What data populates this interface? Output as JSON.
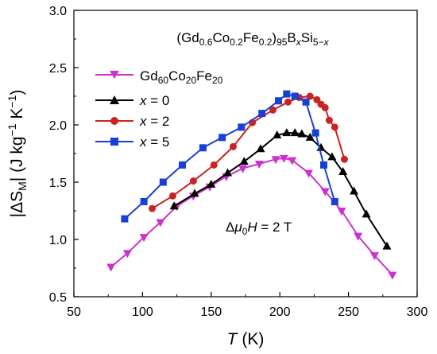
{
  "chart_data": {
    "type": "line",
    "title": "(Gd0.6Co0.2Fe0.2)95BxSi5−x",
    "title_parts": {
      "a": "(Gd",
      "b": "0.6",
      "c": "Co",
      "d": "0.2",
      "e": "Fe",
      "f": "0.2",
      "g": ")",
      "h": "95",
      "i": "B",
      "j": "x",
      "k": "Si",
      "l": "5−",
      "m": "x"
    },
    "xlabel": "T (K)",
    "xlabel_parts": {
      "var": "T",
      "unit": " (K)"
    },
    "ylabel": "|ΔSM| (J kg−1 K−1)",
    "ylabel_parts": {
      "a": "|ΔS",
      "b": "M",
      "c": "| (J kg",
      "d": "−1",
      "e": " K",
      "f": "−1",
      "g": ")"
    },
    "annotation": "Δμ0H = 2 T",
    "annotation_parts": {
      "a": "Δ",
      "b": "μ",
      "c": "0",
      "d": "H",
      "e": " = 2 T"
    },
    "xlim": [
      50,
      300
    ],
    "ylim": [
      0.5,
      3.0
    ],
    "xticks": [
      "50",
      "100",
      "150",
      "200",
      "250",
      "300"
    ],
    "yticks": [
      "0.5",
      "1.0",
      "1.5",
      "2.0",
      "2.5",
      "3.0"
    ],
    "grid": false,
    "legend_position": "top-left",
    "series": [
      {
        "name": "Gd60Co20Fe20",
        "legend_parts": {
          "a": "Gd",
          "b": "60",
          "c": "Co",
          "d": "20",
          "e": "Fe",
          "f": "20"
        },
        "color": "#cc33cc",
        "marker": "triangle-down",
        "points": [
          [
            77,
            0.76
          ],
          [
            89,
            0.88
          ],
          [
            101,
            1.02
          ],
          [
            113,
            1.15
          ],
          [
            125,
            1.29
          ],
          [
            137,
            1.38
          ],
          [
            149,
            1.46
          ],
          [
            161,
            1.55
          ],
          [
            173,
            1.62
          ],
          [
            185,
            1.66
          ],
          [
            197,
            1.7
          ],
          [
            203,
            1.71
          ],
          [
            209,
            1.69
          ],
          [
            221,
            1.58
          ],
          [
            233,
            1.42
          ],
          [
            245,
            1.25
          ],
          [
            257,
            1.03
          ],
          [
            269,
            0.86
          ],
          [
            282,
            0.69
          ]
        ]
      },
      {
        "name": "x = 0",
        "legend_parts": {
          "var": "x",
          "rest": " = 0"
        },
        "color": "#000000",
        "marker": "triangle-up",
        "points": [
          [
            123,
            1.29
          ],
          [
            138,
            1.4
          ],
          [
            150,
            1.48
          ],
          [
            162,
            1.58
          ],
          [
            174,
            1.68
          ],
          [
            186,
            1.79
          ],
          [
            198,
            1.91
          ],
          [
            205,
            1.93
          ],
          [
            211,
            1.93
          ],
          [
            216,
            1.92
          ],
          [
            222,
            1.89
          ],
          [
            230,
            1.8
          ],
          [
            238,
            1.72
          ],
          [
            246,
            1.59
          ],
          [
            254,
            1.42
          ],
          [
            263,
            1.22
          ],
          [
            278,
            0.94
          ]
        ]
      },
      {
        "name": "x = 2",
        "legend_parts": {
          "var": "x",
          "rest": " = 2"
        },
        "color": "#cc2222",
        "marker": "circle",
        "points": [
          [
            107,
            1.27
          ],
          [
            122,
            1.38
          ],
          [
            137,
            1.51
          ],
          [
            152,
            1.65
          ],
          [
            166,
            1.81
          ],
          [
            180,
            2.02
          ],
          [
            195,
            2.13
          ],
          [
            206,
            2.2
          ],
          [
            214,
            2.24
          ],
          [
            222,
            2.25
          ],
          [
            227,
            2.22
          ],
          [
            230,
            2.18
          ],
          [
            233,
            2.15
          ],
          [
            236,
            2.04
          ],
          [
            240,
            1.98
          ],
          [
            247,
            1.7
          ]
        ]
      },
      {
        "name": "x = 5",
        "legend_parts": {
          "var": "x",
          "rest": " = 5"
        },
        "color": "#1a3fd6",
        "marker": "square",
        "points": [
          [
            87,
            1.18
          ],
          [
            101,
            1.33
          ],
          [
            115,
            1.5
          ],
          [
            129,
            1.65
          ],
          [
            144,
            1.8
          ],
          [
            158,
            1.89
          ],
          [
            172,
            1.98
          ],
          [
            187,
            2.1
          ],
          [
            199,
            2.21
          ],
          [
            205,
            2.27
          ],
          [
            211,
            2.25
          ],
          [
            219,
            2.2
          ],
          [
            226,
            1.93
          ],
          [
            232,
            1.65
          ],
          [
            240,
            1.33
          ]
        ]
      }
    ]
  }
}
